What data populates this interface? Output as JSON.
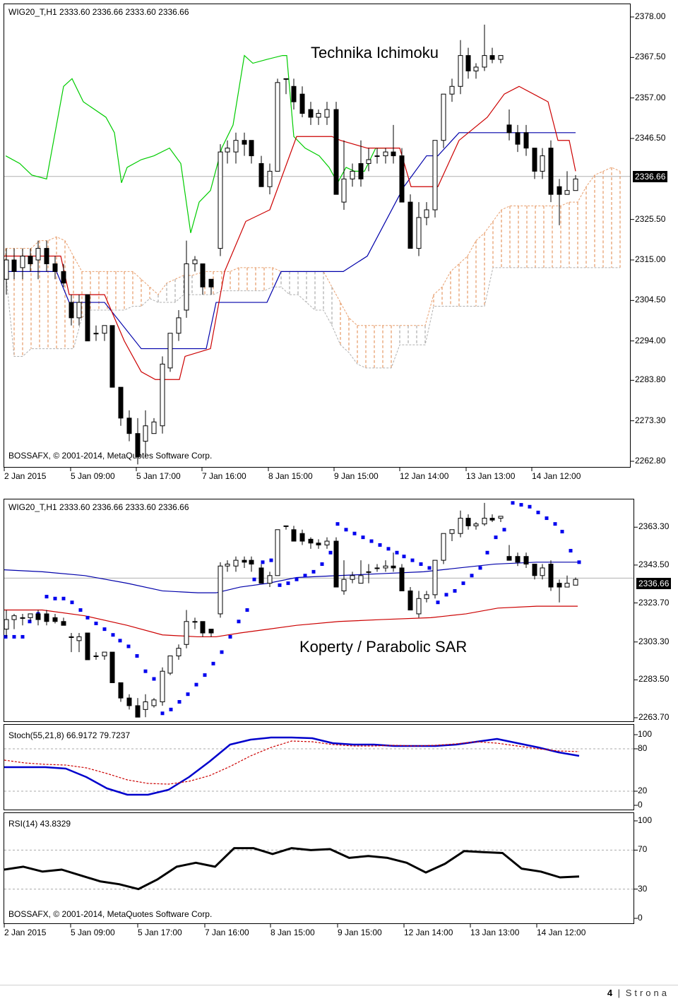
{
  "chart_data": [
    {
      "type": "candlestick",
      "symbol_header": "WIG20_T,H1  2333.60 2336.66 2333.60 2336.66",
      "annotation": "Technika Ichimoku",
      "copyright": "BOSSAFX, © 2001-2014, MetaQuotes Software Corp.",
      "current_price": "2336.66",
      "ylim": [
        2262.8,
        2378.0
      ],
      "y_ticks": [
        "2378.00",
        "2367.50",
        "2357.00",
        "2346.50",
        "2336.66",
        "2325.50",
        "2315.00",
        "2304.50",
        "2294.00",
        "2283.80",
        "2273.30",
        "2262.80"
      ],
      "x_ticks": [
        "2 Jan 2015",
        "5 Jan 09:00",
        "5 Jan 17:00",
        "7 Jan 16:00",
        "8 Jan 15:00",
        "9 Jan 15:00",
        "12 Jan 14:00",
        "13 Jan 13:00",
        "14 Jan 12:00"
      ],
      "indicators": [
        "Tenkan-sen",
        "Kijun-sen",
        "Chikou Span",
        "Kumo cloud"
      ],
      "colors": {
        "tenkan": "#cc0000",
        "kijun": "#0000aa",
        "chikou": "#00cc00",
        "cloud_up": "#e8a070",
        "cloud_down": "#b0b0b0",
        "bull": "#ffffff",
        "bear": "#000000"
      }
    },
    {
      "type": "candlestick",
      "symbol_header": "WIG20_T,H1  2333.60 2336.66 2333.60 2336.66",
      "annotation": "Koperty / Parabolic SAR",
      "current_price": "2336.66",
      "ylim": [
        2263.7,
        2373.0
      ],
      "y_ticks": [
        "2363.30",
        "2343.50",
        "2336.66",
        "2323.70",
        "2303.30",
        "2283.50",
        "2263.70"
      ],
      "indicators": [
        "Envelope upper",
        "Envelope lower",
        "Parabolic SAR"
      ],
      "colors": {
        "upper": "#0000aa",
        "lower": "#cc0000",
        "sar": "#0000ee"
      }
    },
    {
      "type": "line",
      "header": "Stoch(55,21,8) 66.9172 79.7237",
      "ylim": [
        0,
        100
      ],
      "y_ticks": [
        "100",
        "80",
        "20",
        "0"
      ],
      "levels": [
        80,
        20
      ],
      "series": [
        {
          "name": "%K",
          "color": "#0000cc",
          "values": [
            54,
            54,
            54,
            52,
            40,
            24,
            15,
            15,
            22,
            40,
            62,
            86,
            93,
            96,
            96,
            95,
            88,
            86,
            86,
            84,
            84,
            84,
            86,
            90,
            94,
            88,
            82,
            75,
            70
          ]
        },
        {
          "name": "%D",
          "color": "#cc0000",
          "values": [
            64,
            60,
            58,
            57,
            53,
            45,
            36,
            31,
            30,
            34,
            42,
            55,
            70,
            82,
            91,
            90,
            86,
            84,
            84,
            85,
            84,
            85,
            87,
            90,
            88,
            84,
            80,
            77,
            76
          ]
        }
      ]
    },
    {
      "type": "line",
      "header": "RSI(14) 43.8329",
      "copyright": "BOSSAFX, © 2001-2014, MetaQuotes Software Corp.",
      "ylim": [
        0,
        100
      ],
      "y_ticks": [
        "100",
        "70",
        "30",
        "0"
      ],
      "levels": [
        70,
        30
      ],
      "series": [
        {
          "name": "RSI",
          "color": "#000000",
          "values": [
            50,
            53,
            48,
            50,
            44,
            38,
            35,
            30,
            40,
            53,
            57,
            53,
            72,
            72,
            66,
            72,
            70,
            71,
            62,
            64,
            62,
            57,
            47,
            56,
            69,
            68,
            67,
            51,
            48,
            42,
            43
          ]
        }
      ],
      "x_ticks": [
        "2 Jan 2015",
        "5 Jan 09:00",
        "5 Jan 17:00",
        "7 Jan 16:00",
        "8 Jan 15:00",
        "9 Jan 15:00",
        "12 Jan 14:00",
        "13 Jan 13:00",
        "14 Jan 12:00"
      ]
    }
  ],
  "footer": {
    "page": "4",
    "sep": "|",
    "word": "Strona"
  }
}
